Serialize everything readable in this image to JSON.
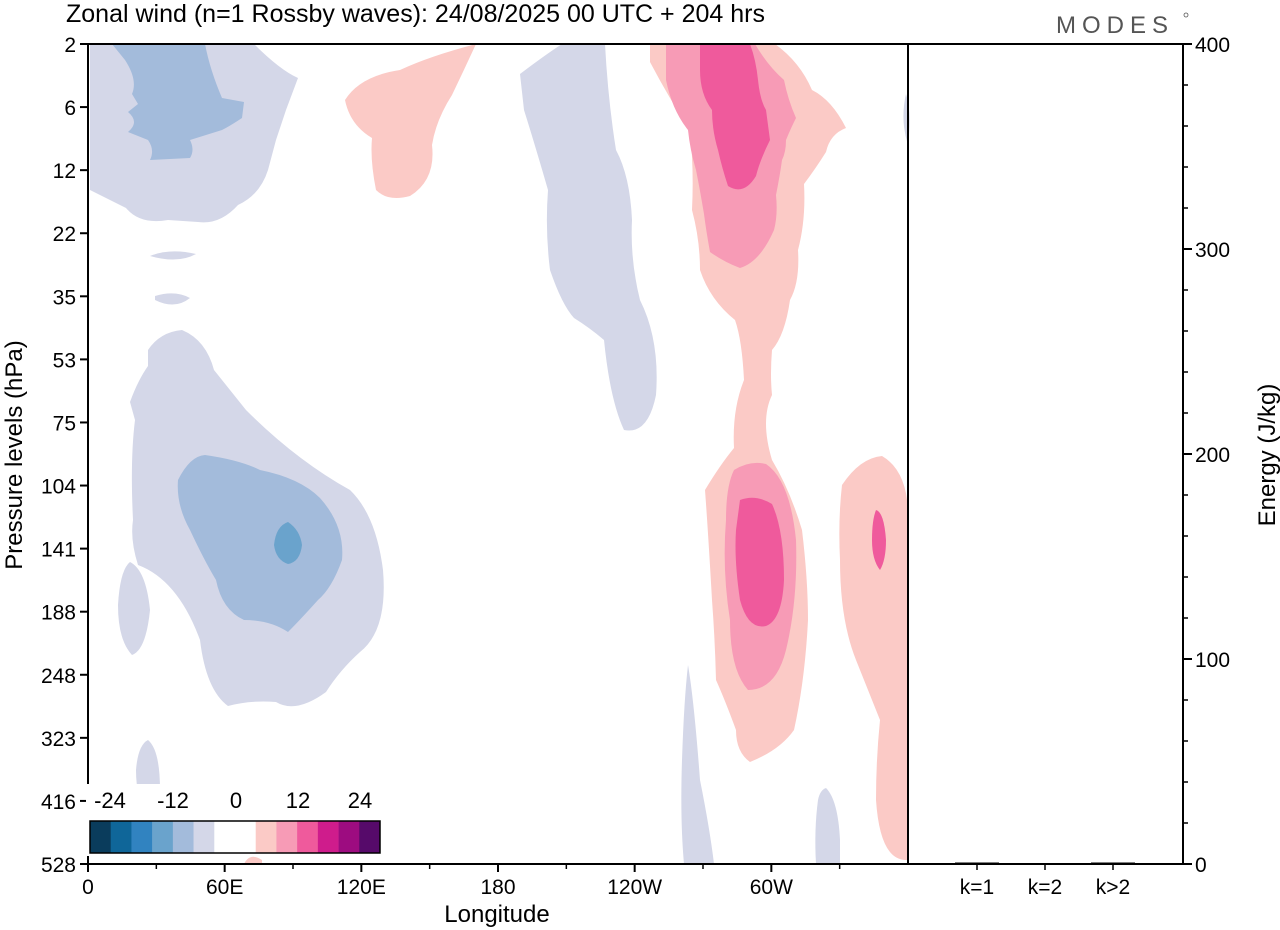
{
  "chart_data": {
    "type": "heatmap",
    "title": "Zonal wind (n=1 Rossby waves):  24/08/2025  00 UTC  + 204 hrs",
    "logo": "MODES",
    "xlabel": "Longitude",
    "ylabel": "Pressure levels (hPa)",
    "y2label": "Energy (J/kg)",
    "x_ticks": [
      "0",
      "60E",
      "120E",
      "180",
      "120W",
      "60W"
    ],
    "y_ticks": [
      "2",
      "6",
      "12",
      "22",
      "35",
      "53",
      "75",
      "104",
      "141",
      "188",
      "248",
      "323",
      "416",
      "528"
    ],
    "y2_ticks": [
      "0",
      "100",
      "200",
      "300",
      "400"
    ],
    "y2_range": [
      0,
      400
    ],
    "energy_bars": [
      {
        "label": "k=1",
        "value": 0.5
      },
      {
        "label": "k=2",
        "value": 0
      },
      {
        "label": "k>2",
        "value": 0.5
      }
    ],
    "colorbar": {
      "labels": [
        "-24",
        "-12",
        "0",
        "12",
        "24"
      ],
      "colors": [
        "#0a3c5c",
        "#0f6699",
        "#3183c0",
        "#6aa3cc",
        "#a3bbdb",
        "#d4d7e8",
        "#ffffff",
        "#ffffff",
        "#fbcac6",
        "#f79bb6",
        "#ef5a9c",
        "#cf1c8c",
        "#9d0c80",
        "#560a6a"
      ]
    },
    "contour_colors": {
      "neg_weak": "#d4d7e8",
      "neg_mid": "#a3bbdb",
      "neg_strong": "#6aa3cc",
      "pos_weak": "#fbcac6",
      "pos_mid": "#f79bb6",
      "pos_strong": "#ef5a9c"
    }
  }
}
